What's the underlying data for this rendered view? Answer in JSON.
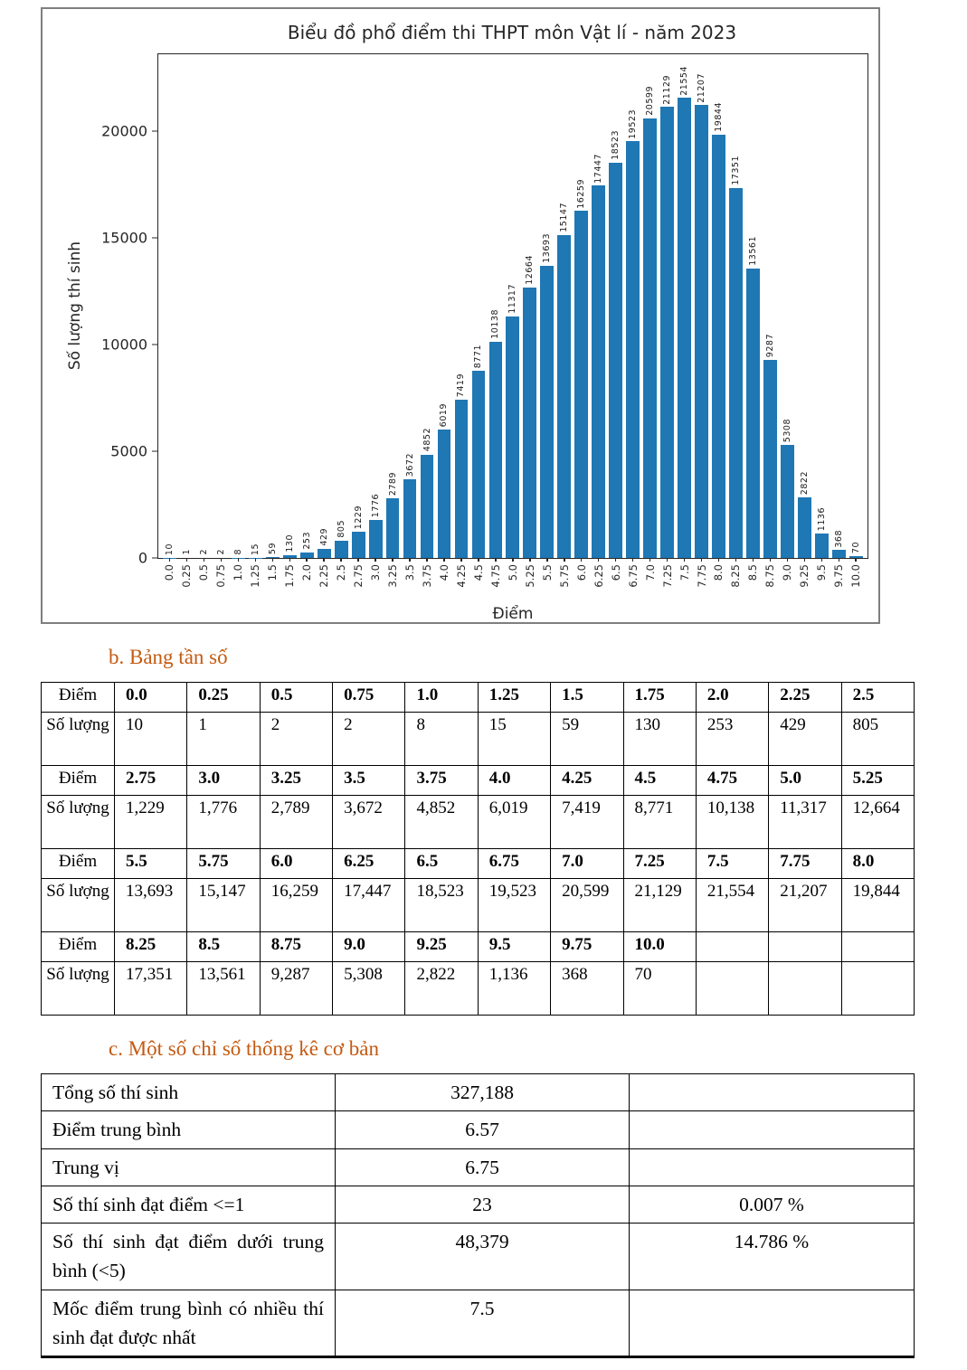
{
  "accent_color": "#C45A11",
  "chart_data": {
    "type": "bar",
    "title": "Biểu đồ phổ điểm thi THPT môn Vật lí - năm 2023",
    "xlabel": "Điểm",
    "ylabel": "Số lượng thí sinh",
    "categories": [
      "0.0",
      "0.25",
      "0.5",
      "0.75",
      "1.0",
      "1.25",
      "1.5",
      "1.75",
      "2.0",
      "2.25",
      "2.5",
      "2.75",
      "3.0",
      "3.25",
      "3.5",
      "3.75",
      "4.0",
      "4.25",
      "4.5",
      "4.75",
      "5.0",
      "5.25",
      "5.5",
      "5.75",
      "6.0",
      "6.25",
      "6.5",
      "6.75",
      "7.0",
      "7.25",
      "7.5",
      "7.75",
      "8.0",
      "8.25",
      "8.5",
      "8.75",
      "9.0",
      "9.25",
      "9.5",
      "9.75",
      "10.0"
    ],
    "values": [
      10,
      1,
      2,
      2,
      8,
      15,
      59,
      130,
      253,
      429,
      805,
      1229,
      1776,
      2789,
      3672,
      4852,
      6019,
      7419,
      8771,
      10138,
      11317,
      12664,
      13693,
      15147,
      16259,
      17447,
      18523,
      19523,
      20599,
      21129,
      21554,
      21207,
      19844,
      17351,
      13561,
      9287,
      5308,
      2822,
      1136,
      368,
      70
    ],
    "ylim": [
      0,
      23600
    ],
    "yticks": [
      0,
      5000,
      10000,
      15000,
      20000
    ],
    "bar_color": "#1f77b4",
    "grid": false,
    "bar_value_labels": true,
    "x_tick_rotation": 90,
    "legend": false
  },
  "section_b": {
    "heading": "b. Bảng tần số"
  },
  "freq_table": {
    "row_label_score": "Điểm",
    "row_label_count": "Số lượng",
    "groups": [
      {
        "diem": [
          "0.0",
          "0.25",
          "0.5",
          "0.75",
          "1.0",
          "1.25",
          "1.5",
          "1.75",
          "2.0",
          "2.25",
          "2.5"
        ],
        "soluong": [
          "10",
          "1",
          "2",
          "2",
          "8",
          "15",
          "59",
          "130",
          "253",
          "429",
          "805"
        ]
      },
      {
        "diem": [
          "2.75",
          "3.0",
          "3.25",
          "3.5",
          "3.75",
          "4.0",
          "4.25",
          "4.5",
          "4.75",
          "5.0",
          "5.25"
        ],
        "soluong": [
          "1,229",
          "1,776",
          "2,789",
          "3,672",
          "4,852",
          "6,019",
          "7,419",
          "8,771",
          "10,138",
          "11,317",
          "12,664"
        ]
      },
      {
        "diem": [
          "5.5",
          "5.75",
          "6.0",
          "6.25",
          "6.5",
          "6.75",
          "7.0",
          "7.25",
          "7.5",
          "7.75",
          "8.0"
        ],
        "soluong": [
          "13,693",
          "15,147",
          "16,259",
          "17,447",
          "18,523",
          "19,523",
          "20,599",
          "21,129",
          "21,554",
          "21,207",
          "19,844"
        ]
      },
      {
        "diem": [
          "8.25",
          "8.5",
          "8.75",
          "9.0",
          "9.25",
          "9.5",
          "9.75",
          "10.0",
          "",
          "",
          ""
        ],
        "soluong": [
          "17,351",
          "13,561",
          "9,287",
          "5,308",
          "2,822",
          "1,136",
          "368",
          "70",
          "",
          "",
          ""
        ]
      }
    ]
  },
  "section_c": {
    "heading": "c. Một số chỉ số thống kê cơ bản"
  },
  "stats_table": {
    "rows": [
      {
        "label": "Tổng số thí sinh",
        "value": "327,188",
        "percent": ""
      },
      {
        "label": "Điểm trung bình",
        "value": "6.57",
        "percent": ""
      },
      {
        "label": "Trung vị",
        "value": "6.75",
        "percent": ""
      },
      {
        "label": "Số thí sinh đạt điểm <=1",
        "value": "23",
        "percent": "0.007 %"
      },
      {
        "label": "Số thí sinh đạt điểm dưới trung bình (<5)",
        "value": "48,379",
        "percent": "14.786 %"
      },
      {
        "label": "Mốc điểm trung bình có nhiều thí sinh đạt được nhất",
        "value": "7.5",
        "percent": ""
      }
    ]
  }
}
